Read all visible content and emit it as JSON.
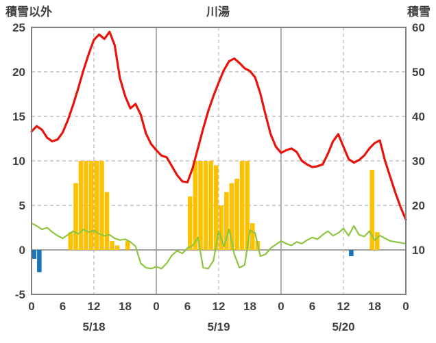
{
  "header": {
    "left_axis_title": "積雪以外",
    "title": "川湯",
    "right_axis_title": "積雪"
  },
  "chart_data": {
    "type": "line+bar",
    "title": "川湯",
    "x_range": [
      0,
      72
    ],
    "left_axis": {
      "label": "積雪以外",
      "min": -5,
      "max": 25,
      "ticks": [
        -5,
        0,
        5,
        10,
        15,
        20,
        25
      ]
    },
    "right_axis": {
      "label": "積雪",
      "min": 0,
      "max": 60,
      "ticks": [
        10,
        20,
        30,
        40,
        50,
        60
      ]
    },
    "x_ticks": {
      "hours": [
        0,
        6,
        12,
        18,
        24,
        30,
        36,
        42,
        48,
        54,
        60,
        66,
        72
      ],
      "labels": [
        "0",
        "6",
        "12",
        "18",
        "0",
        "6",
        "12",
        "18",
        "0",
        "6",
        "12",
        "18",
        "0"
      ]
    },
    "day_labels": [
      {
        "label": "5/18",
        "hour": 12
      },
      {
        "label": "5/19",
        "hour": 36
      },
      {
        "label": "5/20",
        "hour": 60
      }
    ],
    "gridlines": {
      "horizontal_dashed": [
        5,
        10,
        15,
        20
      ],
      "zero_line": 0,
      "vertical_solid_hours": [
        24,
        48
      ],
      "vertical_dashed_hours": [
        12,
        36,
        60
      ]
    },
    "style": {
      "grid_color": "#b3b3b3",
      "day_line_color": "#999999",
      "zero_line_color": "#808080",
      "frame_color": "#7f7f7f",
      "text_color": "#404040",
      "background": "#ffffff"
    },
    "series": [
      {
        "name": "orange-bars",
        "type": "bar",
        "color": "#fcc200",
        "points": [
          [
            7,
            2
          ],
          [
            8,
            7.5
          ],
          [
            9,
            10
          ],
          [
            10,
            10
          ],
          [
            11,
            10
          ],
          [
            12,
            10
          ],
          [
            13,
            10
          ],
          [
            14,
            6.5
          ],
          [
            15,
            1
          ],
          [
            16,
            0.5
          ],
          [
            18,
            1
          ],
          [
            30,
            6
          ],
          [
            31,
            10
          ],
          [
            32,
            10
          ],
          [
            33,
            10
          ],
          [
            34,
            10
          ],
          [
            35,
            9.5
          ],
          [
            36,
            5
          ],
          [
            37,
            6.5
          ],
          [
            38,
            7.5
          ],
          [
            39,
            8
          ],
          [
            40,
            10
          ],
          [
            41,
            10
          ],
          [
            42,
            3
          ],
          [
            43,
            1
          ],
          [
            65,
            9
          ],
          [
            66,
            2
          ]
        ]
      },
      {
        "name": "blue-bars",
        "type": "bar",
        "color": "#1a75bb",
        "points": [
          [
            0,
            -1.0
          ],
          [
            1,
            -2.5
          ],
          [
            61,
            -0.7
          ]
        ]
      },
      {
        "name": "green-line",
        "type": "line",
        "color": "#8cc63e",
        "width": 2.2,
        "values": [
          3.0,
          2.7,
          2.3,
          2.5,
          2.0,
          1.6,
          1.3,
          1.7,
          2.1,
          1.8,
          2.3,
          2.0,
          2.2,
          1.8,
          1.6,
          1.7,
          1.3,
          1.1,
          1.2,
          0.9,
          0.4,
          -1.5,
          -2.0,
          -2.1,
          -1.9,
          -2.1,
          -1.5,
          -0.6,
          -0.1,
          -0.4,
          0.2,
          0.5,
          1.4,
          -2.0,
          -2.1,
          -1.2,
          2.1,
          0.4,
          2.3,
          -0.5,
          -2.0,
          -1.7,
          2.2,
          1.9,
          -0.7,
          -0.5,
          0.2,
          0.6,
          1.0,
          0.7,
          0.5,
          0.9,
          0.7,
          1.1,
          1.4,
          1.2,
          1.7,
          2.1,
          1.6,
          1.9,
          2.4,
          1.6,
          2.7,
          1.7,
          1.5,
          2.1,
          1.1,
          1.6,
          1.3,
          1.0,
          0.9,
          0.8,
          0.7
        ]
      },
      {
        "name": "red-line",
        "type": "line",
        "color": "#e8140c",
        "width": 3.2,
        "values": [
          13.3,
          13.9,
          13.5,
          12.6,
          12.2,
          12.4,
          13.2,
          14.6,
          16.3,
          18.2,
          20.2,
          22.0,
          23.6,
          24.2,
          23.7,
          24.5,
          23.0,
          19.3,
          17.3,
          15.9,
          16.4,
          15.2,
          13.1,
          11.9,
          11.2,
          10.6,
          10.4,
          9.4,
          8.4,
          7.7,
          7.6,
          9.2,
          11.4,
          13.6,
          15.6,
          17.3,
          18.8,
          20.2,
          21.2,
          21.5,
          21.0,
          20.4,
          20.1,
          19.4,
          17.6,
          15.2,
          13.0,
          11.6,
          10.9,
          11.2,
          11.4,
          11.0,
          10.0,
          9.6,
          9.3,
          9.4,
          9.6,
          10.8,
          12.2,
          13.0,
          11.6,
          10.2,
          9.8,
          10.1,
          10.6,
          11.4,
          12.0,
          12.3,
          10.0,
          8.2,
          6.4,
          4.8,
          3.4
        ]
      }
    ]
  }
}
